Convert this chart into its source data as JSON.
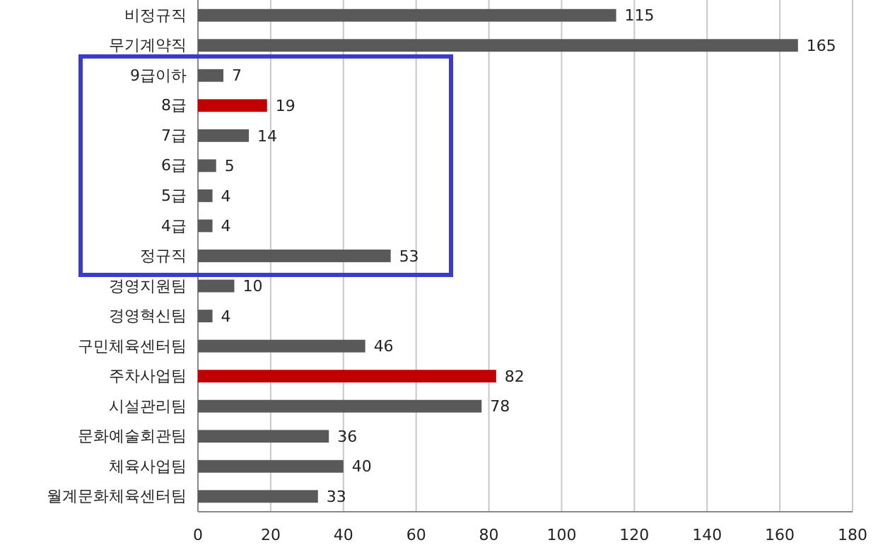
{
  "chart_data": {
    "type": "bar",
    "orientation": "horizontal",
    "categories": [
      "비정규직",
      "무기계약직",
      "9급이하",
      "8급",
      "7급",
      "6급",
      "5급",
      "4급",
      "정규직",
      "경영지원팀",
      "경영혁신팀",
      "구민체육센터팀",
      "주차사업팀",
      "시설관리팀",
      "문화예술회관팀",
      "체육사업팀",
      "월계문화체육센터팀"
    ],
    "values": [
      115,
      165,
      7,
      19,
      14,
      5,
      4,
      4,
      53,
      10,
      4,
      46,
      82,
      78,
      36,
      40,
      33
    ],
    "colors": [
      "#595959",
      "#595959",
      "#595959",
      "#c00000",
      "#595959",
      "#595959",
      "#595959",
      "#595959",
      "#595959",
      "#595959",
      "#595959",
      "#595959",
      "#c00000",
      "#595959",
      "#595959",
      "#595959",
      "#595959"
    ],
    "xlim": [
      0,
      180
    ],
    "xticks": [
      0,
      20,
      40,
      60,
      80,
      100,
      120,
      140,
      160,
      180
    ],
    "grid": "x",
    "data_labels": true
  }
}
